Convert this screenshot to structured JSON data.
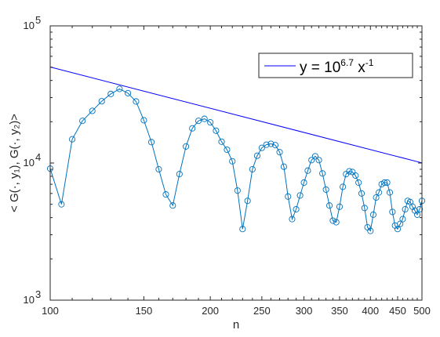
{
  "chart_data": {
    "type": "line",
    "xscale": "log",
    "yscale": "log",
    "xlabel": "n",
    "ylabel": "< G(·, y₁), G(·, y₂)>",
    "xlim": [
      100,
      500
    ],
    "ylim": [
      1000,
      100000
    ],
    "xticks": [
      100,
      150,
      200,
      250,
      300,
      350,
      400,
      450,
      500
    ],
    "xtick_labels": [
      "100",
      "150",
      "200",
      "250",
      "300",
      "350",
      "400",
      "450",
      "500"
    ],
    "yticks": [
      1000,
      10000,
      100000
    ],
    "ytick_labels": [
      {
        "base": "10",
        "exp": "3"
      },
      {
        "base": "10",
        "exp": "4"
      },
      {
        "base": "10",
        "exp": "5"
      }
    ],
    "legend": {
      "position": "top-right",
      "entries": [
        {
          "base": "y = 10",
          "exp1": "6.7",
          "mid": " x",
          "exp2": "-1"
        }
      ]
    },
    "grid": false,
    "series": [
      {
        "color": "#0072BD",
        "marker": "circle",
        "x": [
          100,
          105,
          110,
          115,
          120,
          125,
          130,
          135,
          140,
          145,
          150,
          155,
          160,
          165,
          170,
          175,
          180,
          185,
          190,
          195,
          200,
          205,
          210,
          215,
          220,
          225,
          230,
          235,
          240,
          245,
          250,
          255,
          260,
          265,
          270,
          275,
          280,
          285,
          290,
          295,
          300,
          305,
          310,
          315,
          320,
          325,
          330,
          335,
          340,
          345,
          350,
          355,
          360,
          365,
          370,
          375,
          380,
          385,
          390,
          395,
          400,
          405,
          410,
          415,
          420,
          425,
          430,
          435,
          440,
          445,
          450,
          455,
          460,
          465,
          470,
          475,
          480,
          485,
          490,
          495,
          500
        ],
        "y": [
          9100,
          5000,
          14900,
          20300,
          24000,
          28200,
          31900,
          34700,
          32300,
          28100,
          20500,
          14200,
          9000,
          5900,
          4900,
          8300,
          13200,
          17900,
          20300,
          21000,
          19800,
          17200,
          14300,
          12500,
          10300,
          6300,
          3300,
          5300,
          9000,
          11300,
          12900,
          13600,
          13800,
          13500,
          12000,
          9400,
          5700,
          3900,
          4600,
          5800,
          7200,
          8800,
          10500,
          11200,
          10500,
          8400,
          6400,
          4900,
          3800,
          3700,
          4800,
          6700,
          8300,
          8700,
          8600,
          8100,
          7200,
          6000,
          4700,
          3400,
          3200,
          4200,
          5600,
          6100,
          7000,
          7200,
          7200,
          6100,
          4400,
          3500,
          3300,
          3600,
          3900,
          4600,
          5300,
          5200,
          4800,
          4500,
          4200,
          4600,
          5300
        ]
      },
      {
        "name": "y = 10^6.7 x^-1",
        "color": "#0000FF",
        "marker": "none",
        "x": [
          100,
          500
        ],
        "y": [
          50119,
          10024
        ]
      }
    ]
  }
}
